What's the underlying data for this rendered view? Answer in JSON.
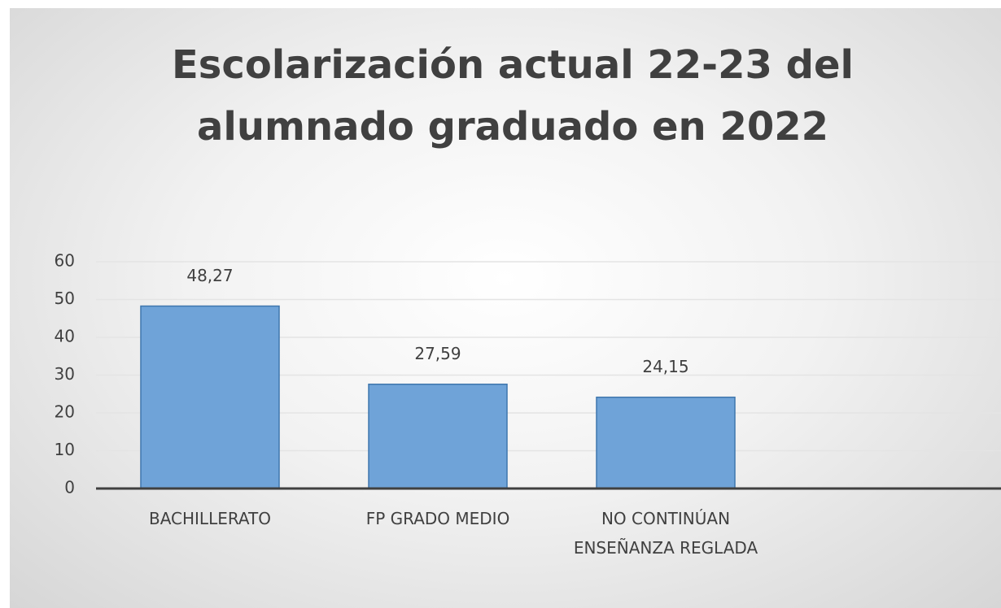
{
  "chart_data": {
    "type": "bar",
    "title": "Escolarización actual 22-23 del alumnado graduado en 2022",
    "categories": [
      "BACHILLERATO",
      "FP GRADO MEDIO",
      "NO CONTINÚAN ENSEÑANZA REGLADA"
    ],
    "values": [
      48.27,
      27.59,
      24.15
    ],
    "value_labels": [
      "48,27",
      "27,59",
      "24,15"
    ],
    "color": "#6fa3d8",
    "ylim": [
      0,
      60
    ],
    "yticks": [
      0,
      10,
      20,
      30,
      40,
      50,
      60
    ],
    "grid": true
  }
}
